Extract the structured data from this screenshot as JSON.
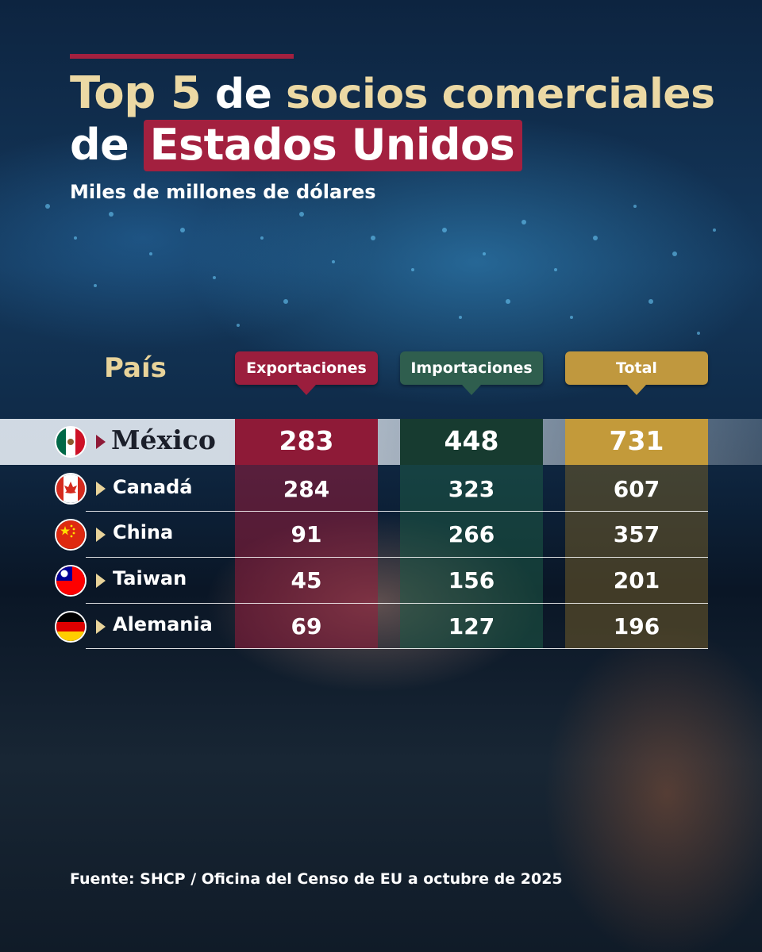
{
  "header": {
    "title_top": "Top 5",
    "title_de1": "de",
    "title_rest1": "socios comerciales",
    "title_de2": "de",
    "title_highlight": "Estados Unidos",
    "subtitle": "Miles de millones de dólares"
  },
  "table": {
    "col_country": "País",
    "col_exports": "Exportaciones",
    "col_imports": "Importaciones",
    "col_total": "Total"
  },
  "chart_data": {
    "type": "table",
    "title": "Top 5 de socios comerciales de Estados Unidos",
    "subtitle": "Miles de millones de dólares",
    "columns": [
      "País",
      "Exportaciones",
      "Importaciones",
      "Total"
    ],
    "rows": [
      {
        "country": "México",
        "exports": "283",
        "imports": "448",
        "total": "731",
        "flag": "mexico-flag-icon"
      },
      {
        "country": "Canadá",
        "exports": "284",
        "imports": "323",
        "total": "607",
        "flag": "canada-flag-icon"
      },
      {
        "country": "China",
        "exports": "91",
        "imports": "266",
        "total": "357",
        "flag": "china-flag-icon"
      },
      {
        "country": "Taiwan",
        "exports": "45",
        "imports": "156",
        "total": "201",
        "flag": "taiwan-flag-icon"
      },
      {
        "country": "Alemania",
        "exports": "69",
        "imports": "127",
        "total": "196",
        "flag": "germany-flag-icon"
      }
    ]
  },
  "footer": {
    "source": "Fuente: SHCP / Oficina del Censo de EU a octubre de 2025"
  },
  "colors": {
    "accent_red": "#9b1e3d",
    "accent_green": "#2f5e4e",
    "accent_gold": "#c0983e",
    "title_gold": "#ecd9a4"
  }
}
